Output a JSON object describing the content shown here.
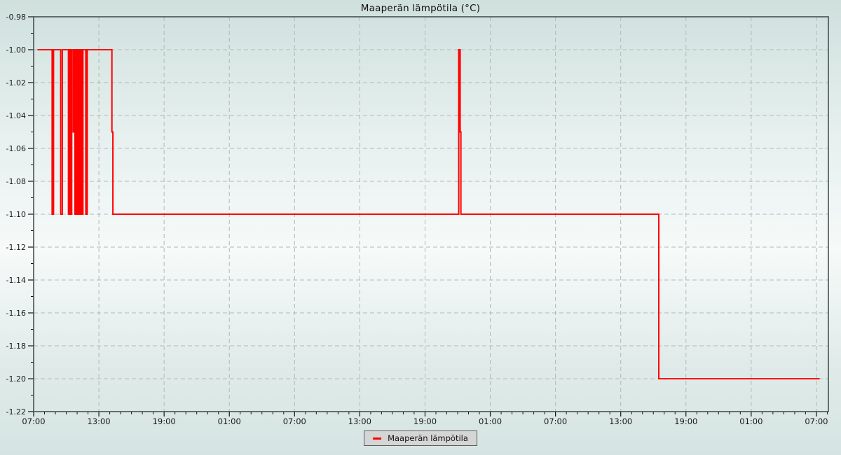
{
  "title": "Maaperän lämpötila (°C)",
  "legend": {
    "label": "Maaperän lämpötila",
    "line_color": "#ff0000"
  },
  "colors": {
    "series": "#ff0000",
    "grid": "#b3b9b9",
    "border": "#47504f",
    "tick": "#111111",
    "text": "#1a1a1a",
    "bg_top": "#cfe0dd",
    "bg_mid": "#f6faf9",
    "bg_bottom": "#d5e4e2",
    "legend_bg": "#d5d5d5"
  },
  "chart_data": {
    "type": "line",
    "title": "Maaperän lämpötila (°C)",
    "xlabel": "",
    "ylabel": "",
    "grid": true,
    "legend_position": "bottom",
    "x_axis": {
      "kind": "time",
      "domain_hours": [
        0,
        73.1
      ],
      "major_step_hours": 6,
      "minor_step_hours": 1,
      "tick_labels": [
        "07:00",
        "13:00",
        "19:00",
        "01:00",
        "07:00",
        "13:00",
        "19:00",
        "01:00",
        "07:00",
        "13:00",
        "19:00",
        "01:00",
        "07:00"
      ]
    },
    "y_axis": {
      "domain": [
        -1.22,
        -0.98
      ],
      "major_step": 0.02,
      "minor_step": 0.01,
      "tick_labels": [
        "-0.98",
        "-1.00",
        "-1.02",
        "-1.04",
        "-1.06",
        "-1.08",
        "-1.10",
        "-1.12",
        "-1.14",
        "-1.16",
        "-1.18",
        "-1.20",
        "-1.22"
      ]
    },
    "series": [
      {
        "name": "Maaperän lämpötila",
        "color": "#ff0000",
        "note": "step series; points are [hours since first 07:00, value °C]; value holds until next point",
        "end_t": 72.3,
        "step_points": [
          [
            0.355,
            -1.0
          ],
          [
            1.7,
            -1.1
          ],
          [
            1.83,
            -1.0
          ],
          [
            2.49,
            -1.1
          ],
          [
            2.64,
            -1.0
          ],
          [
            3.2,
            -1.1
          ],
          [
            3.243,
            -1.0
          ],
          [
            3.286,
            -1.1
          ],
          [
            3.329,
            -1.0
          ],
          [
            3.372,
            -1.1
          ],
          [
            3.415,
            -1.0
          ],
          [
            3.458,
            -1.1
          ],
          [
            3.501,
            -1.0
          ],
          [
            3.64,
            -1.05
          ],
          [
            3.71,
            -1.0
          ],
          [
            3.803,
            -1.1
          ],
          [
            3.846,
            -1.0
          ],
          [
            3.889,
            -1.1
          ],
          [
            3.932,
            -1.05
          ],
          [
            3.975,
            -1.1
          ],
          [
            4.018,
            -1.0
          ],
          [
            4.061,
            -1.1
          ],
          [
            4.104,
            -1.0
          ],
          [
            4.147,
            -1.1
          ],
          [
            4.19,
            -1.0
          ],
          [
            4.233,
            -1.1
          ],
          [
            4.276,
            -1.0
          ],
          [
            4.319,
            -1.1
          ],
          [
            4.362,
            -1.0
          ],
          [
            4.405,
            -1.1
          ],
          [
            4.448,
            -1.0
          ],
          [
            4.491,
            -1.1
          ],
          [
            4.534,
            -1.0
          ],
          [
            4.8,
            -1.1
          ],
          [
            4.93,
            -1.0
          ],
          [
            7.2,
            -1.05
          ],
          [
            7.29,
            -1.1
          ],
          [
            39.1,
            -1.0
          ],
          [
            39.23,
            -1.05
          ],
          [
            39.3,
            -1.1
          ],
          [
            57.5,
            -1.2
          ]
        ]
      }
    ]
  }
}
